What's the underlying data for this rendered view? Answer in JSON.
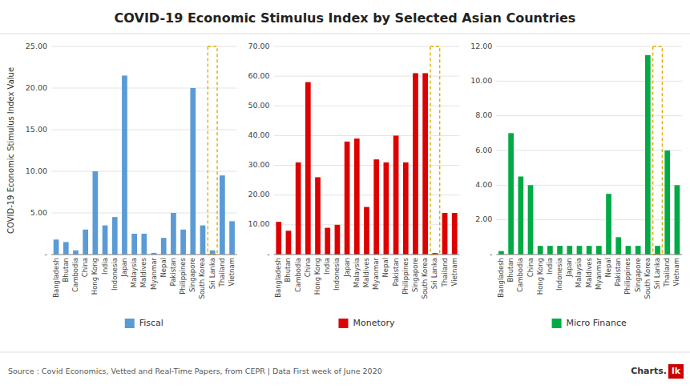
{
  "chart_data": [
    {
      "type": "bar",
      "title": "COVID-19 Economic Stimulus Index by Selected Asian Countries",
      "ylabel": "COVID-19 Economic Stimulus Index Value",
      "annotations": [
        "Source : Covid Economics, Vetted and Real-Time Papers, from CEPR | Data First week of June  2020",
        "Charts.",
        "lk"
      ],
      "categories": [
        "Bangladesh",
        "Bhutan",
        "Cambodia",
        "China",
        "Hong Kong",
        "India",
        "Indonesia",
        "Japan",
        "Malaysia",
        "Maldives",
        "Myanmar",
        "Nepal",
        "Pakistan",
        "Philippines",
        "Singapore",
        "South Korea",
        "Sri Lanka",
        "Thailand",
        "Vietnam"
      ],
      "series": [
        {
          "name": "Fiscal",
          "color": "#5b9bd5",
          "values": [
            1.8,
            1.5,
            0.5,
            3.0,
            10.0,
            3.5,
            4.5,
            21.5,
            2.5,
            2.5,
            0.2,
            2.0,
            5.0,
            3.0,
            20.0,
            3.5,
            0.5,
            9.5,
            4.0
          ]
        }
      ],
      "highlight": "Sri Lanka",
      "ylim": [
        0,
        25.0
      ],
      "yticks": [
        {
          "value": 0,
          "label": "-"
        },
        {
          "value": 5.0,
          "label": "5.00"
        },
        {
          "value": 10.0,
          "label": "10.00"
        },
        {
          "value": 15.0,
          "label": "15.00"
        },
        {
          "value": 20.0,
          "label": "20.00"
        },
        {
          "value": 25.0,
          "label": "25.00"
        }
      ],
      "grid": true
    },
    {
      "type": "bar",
      "categories": [
        "Bangladesh",
        "Bhutan",
        "Cambodia",
        "China",
        "Hong Kong",
        "India",
        "Indonesia",
        "Japan",
        "Malaysia",
        "Maldives",
        "Myanmar",
        "Nepal",
        "Pakistan",
        "Philippines",
        "Singapore",
        "South Korea",
        "Sri Lanka",
        "Thailand",
        "Vietnam"
      ],
      "series": [
        {
          "name": "Monetory",
          "color": "#dd0000",
          "values": [
            11.0,
            8.0,
            31.0,
            58.0,
            26.0,
            9.0,
            10.0,
            38.0,
            39.0,
            16.0,
            32.0,
            31.0,
            40.0,
            31.0,
            61.0,
            61.0,
            0.5,
            14.0,
            14.0
          ]
        }
      ],
      "highlight": "Sri Lanka",
      "ylim": [
        0,
        70.0
      ],
      "yticks": [
        {
          "value": 0,
          "label": "-"
        },
        {
          "value": 10.0,
          "label": "10.00"
        },
        {
          "value": 20.0,
          "label": "20.00"
        },
        {
          "value": 30.0,
          "label": "30.00"
        },
        {
          "value": 40.0,
          "label": "40.00"
        },
        {
          "value": 50.0,
          "label": "50.00"
        },
        {
          "value": 60.0,
          "label": "60.00"
        },
        {
          "value": 70.0,
          "label": "70.00"
        }
      ],
      "grid": true
    },
    {
      "type": "bar",
      "categories": [
        "Bangladesh",
        "Bhutan",
        "Cambodia",
        "China",
        "Hong Kong",
        "India",
        "Indonesia",
        "Japan",
        "Malaysia",
        "Maldives",
        "Myanmar",
        "Nepal",
        "Pakistan",
        "Philippines",
        "Singapore",
        "South Korea",
        "Sri Lanka",
        "Thailand",
        "Vietnam"
      ],
      "series": [
        {
          "name": "Micro Finance",
          "color": "#00aa44",
          "values": [
            0.2,
            7.0,
            4.5,
            4.0,
            0.5,
            0.5,
            0.5,
            0.5,
            0.5,
            0.5,
            0.5,
            3.5,
            1.0,
            0.5,
            0.5,
            11.5,
            0.5,
            6.0,
            4.0
          ]
        }
      ],
      "highlight": "Sri Lanka",
      "ylim": [
        0,
        12.0
      ],
      "yticks": [
        {
          "value": 0,
          "label": "-"
        },
        {
          "value": 2.0,
          "label": "2.00"
        },
        {
          "value": 4.0,
          "label": "4.00"
        },
        {
          "value": 6.0,
          "label": "6.00"
        },
        {
          "value": 8.0,
          "label": "8.00"
        },
        {
          "value": 10.0,
          "label": "10.00"
        },
        {
          "value": 12.0,
          "label": "12.00"
        }
      ],
      "grid": true
    }
  ]
}
